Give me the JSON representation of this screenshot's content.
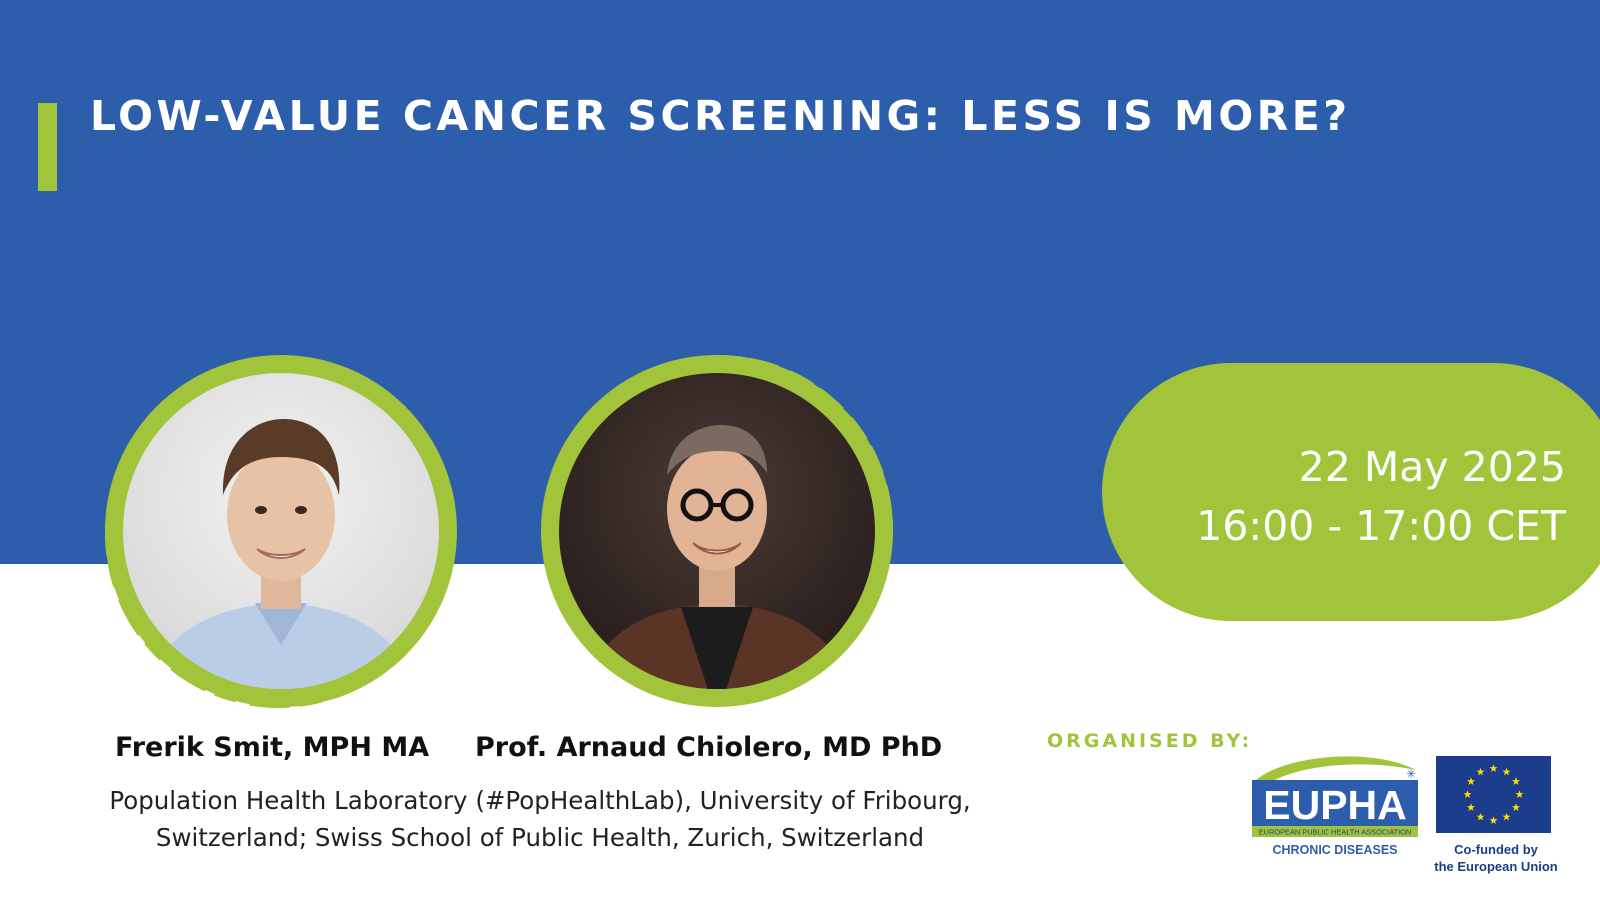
{
  "event": {
    "title": "LOW-VALUE CANCER SCREENING: LESS IS MORE?",
    "date": "22 May 2025",
    "time": "16:00 - 17:00 CET"
  },
  "speakers": [
    {
      "name": "Frerik Smit, MPH MA",
      "photo_icon": "speaker-photo-frerik-smit"
    },
    {
      "name": "Prof. Arnaud Chiolero, MD PhD",
      "photo_icon": "speaker-photo-arnaud-chiolero"
    }
  ],
  "affiliation": "Population Health Laboratory (#PopHealthLab), University of Fribourg, Switzerland; Swiss School of Public Health, Zurich, Switzerland",
  "organisers": {
    "label": "ORGANISED BY:",
    "eupha": {
      "wordmark": "EUPHA",
      "tagline": "EUROPEAN PUBLIC HEALTH ASSOCIATION",
      "section": "CHRONIC DISEASES"
    },
    "eu": {
      "caption": "Co-funded by\nthe European Union",
      "icon": "eu-flag-icon"
    }
  },
  "colors": {
    "primary_blue": "#2d5eab",
    "accent_green": "#a2c43a",
    "text_dark": "#111111",
    "white": "#ffffff",
    "eu_blue": "#1c3d8c",
    "eu_star": "#ffdd00"
  }
}
